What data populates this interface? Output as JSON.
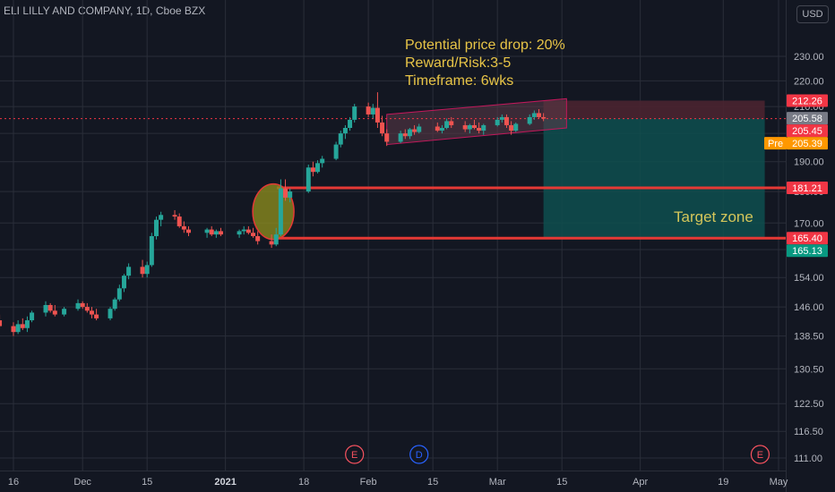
{
  "header": {
    "title": "ELI LILLY AND COMPANY, 1D, Cboe BZX",
    "currency": "USD"
  },
  "annotations": {
    "line1": "Potential price drop: 20%",
    "line2": "Reward/Risk:3-5",
    "line3": "Timeframe: 6wks",
    "target_label": "Target zone"
  },
  "event_markers": [
    {
      "label": "E",
      "date": "2021-01-29",
      "color": "#f7525f"
    },
    {
      "label": "D",
      "date": "2021-02-12",
      "color": "#2962ff"
    },
    {
      "label": "E",
      "date": "2021-04-27",
      "color": "#f7525f"
    }
  ],
  "price_tags": [
    {
      "value": 212.26,
      "text": "212.26",
      "bg": "#f23645"
    },
    {
      "value": 205.58,
      "text": "205.58",
      "bg": "#787b86"
    },
    {
      "value": 205.45,
      "text": "205.45",
      "bg": "#f23645"
    },
    {
      "value": 205.39,
      "text": "205.39",
      "bg": "#ff9800",
      "prefix": "Pre"
    },
    {
      "value": 181.21,
      "text": "181.21",
      "bg": "#f23645"
    },
    {
      "value": 165.4,
      "text": "165.40",
      "bg": "#f23645"
    },
    {
      "value": 165.13,
      "text": "165.13",
      "bg": "#089981"
    }
  ],
  "colors": {
    "up": "#26a69a",
    "down": "#ef5350",
    "support_line": "#e53935",
    "target_fill": "#0e4f4f",
    "stop_fill": "#4a2430",
    "ellipse_fill": "#8a8a1e",
    "ellipse_stroke": "#e53935",
    "channel_fill": "#5d3a48",
    "channel_stroke": "#c2185b"
  },
  "chart_data": {
    "type": "candlestick",
    "price_scale": "log",
    "y_ticks": [
      111.0,
      116.5,
      122.5,
      130.5,
      138.5,
      146.0,
      154.0,
      162.0,
      170.0,
      180.0,
      190.0,
      200.0,
      210.0,
      220.0,
      230.0
    ],
    "y_tick_labels": [
      "111.00",
      "116.50",
      "122.50",
      "130.50",
      "138.50",
      "146.00",
      "154.00",
      "162.0",
      "170.00",
      "180.00",
      "190.00",
      "200.00",
      "210.00",
      "220.00",
      "230.00"
    ],
    "x_ticks": [
      {
        "date": "2020-11-16",
        "label": "16",
        "bold": false
      },
      {
        "date": "2020-12-01",
        "label": "Dec",
        "bold": false
      },
      {
        "date": "2020-12-15",
        "label": "15",
        "bold": false
      },
      {
        "date": "2021-01-01",
        "label": "2021",
        "bold": true
      },
      {
        "date": "2021-01-18",
        "label": "18",
        "bold": false
      },
      {
        "date": "2021-02-01",
        "label": "Feb",
        "bold": false
      },
      {
        "date": "2021-02-15",
        "label": "15",
        "bold": false
      },
      {
        "date": "2021-03-01",
        "label": "Mar",
        "bold": false
      },
      {
        "date": "2021-03-15",
        "label": "15",
        "bold": false
      },
      {
        "date": "2021-04-01",
        "label": "Apr",
        "bold": false
      },
      {
        "date": "2021-04-19",
        "label": "19",
        "bold": false
      },
      {
        "date": "2021-05-01",
        "label": "May",
        "bold": false
      }
    ],
    "last_price": 205.45,
    "support_levels": [
      181.21,
      165.4
    ],
    "target_zone": {
      "from_date": "2021-03-11",
      "to_date": "2021-04-28",
      "top": 205.45,
      "bottom": 165.4
    },
    "stop_zone": {
      "from_date": "2021-03-11",
      "to_date": "2021-04-28",
      "top": 212.26,
      "bottom": 205.45
    },
    "channel": {
      "start_date": "2021-02-05",
      "end_date": "2021-03-16",
      "start_upper": 207.0,
      "start_lower": 196.0,
      "end_upper": 213.0,
      "end_lower": 202.0
    },
    "highlight_ellipse": {
      "date": "2021-01-11",
      "top": 182.5,
      "bottom": 165.0
    },
    "candles": [
      {
        "d": "2020-11-11",
        "o": 143.5,
        "h": 145.0,
        "l": 142.0,
        "c": 144.0
      },
      {
        "d": "2020-11-12",
        "o": 144.0,
        "h": 145.0,
        "l": 141.5,
        "c": 142.5
      },
      {
        "d": "2020-11-13",
        "o": 142.5,
        "h": 144.0,
        "l": 140.5,
        "c": 141.0
      },
      {
        "d": "2020-11-16",
        "o": 141.0,
        "h": 142.0,
        "l": 138.5,
        "c": 139.5
      },
      {
        "d": "2020-11-17",
        "o": 139.5,
        "h": 142.5,
        "l": 139.0,
        "c": 141.5
      },
      {
        "d": "2020-11-18",
        "o": 141.5,
        "h": 143.0,
        "l": 140.0,
        "c": 140.5
      },
      {
        "d": "2020-11-19",
        "o": 140.5,
        "h": 143.5,
        "l": 139.5,
        "c": 142.5
      },
      {
        "d": "2020-11-20",
        "o": 142.5,
        "h": 145.0,
        "l": 142.0,
        "c": 144.5
      },
      {
        "d": "2020-11-23",
        "o": 144.5,
        "h": 147.5,
        "l": 143.5,
        "c": 146.5
      },
      {
        "d": "2020-11-24",
        "o": 146.5,
        "h": 147.0,
        "l": 144.5,
        "c": 145.0
      },
      {
        "d": "2020-11-25",
        "o": 145.0,
        "h": 146.5,
        "l": 143.5,
        "c": 144.0
      },
      {
        "d": "2020-11-27",
        "o": 144.0,
        "h": 146.0,
        "l": 143.5,
        "c": 145.5
      },
      {
        "d": "2020-11-30",
        "o": 145.5,
        "h": 148.0,
        "l": 145.0,
        "c": 147.0
      },
      {
        "d": "2020-12-01",
        "o": 147.0,
        "h": 147.5,
        "l": 145.5,
        "c": 146.0
      },
      {
        "d": "2020-12-02",
        "o": 146.0,
        "h": 147.0,
        "l": 144.5,
        "c": 145.0
      },
      {
        "d": "2020-12-03",
        "o": 145.0,
        "h": 146.0,
        "l": 143.0,
        "c": 144.0
      },
      {
        "d": "2020-12-04",
        "o": 144.0,
        "h": 145.5,
        "l": 142.5,
        "c": 143.0
      },
      {
        "d": "2020-12-07",
        "o": 143.0,
        "h": 146.0,
        "l": 142.5,
        "c": 145.5
      },
      {
        "d": "2020-12-08",
        "o": 145.5,
        "h": 148.5,
        "l": 145.0,
        "c": 148.0
      },
      {
        "d": "2020-12-09",
        "o": 148.0,
        "h": 152.0,
        "l": 147.5,
        "c": 151.0
      },
      {
        "d": "2020-12-10",
        "o": 151.0,
        "h": 155.0,
        "l": 150.0,
        "c": 154.5
      },
      {
        "d": "2020-12-11",
        "o": 154.5,
        "h": 158.0,
        "l": 153.5,
        "c": 157.0
      },
      {
        "d": "2020-12-14",
        "o": 157.0,
        "h": 159.0,
        "l": 154.0,
        "c": 155.0
      },
      {
        "d": "2020-12-15",
        "o": 155.0,
        "h": 158.5,
        "l": 154.0,
        "c": 157.5
      },
      {
        "d": "2020-12-16",
        "o": 157.5,
        "h": 167.0,
        "l": 157.0,
        "c": 166.0
      },
      {
        "d": "2020-12-17",
        "o": 166.0,
        "h": 172.0,
        "l": 165.0,
        "c": 171.0
      },
      {
        "d": "2020-12-18",
        "o": 171.0,
        "h": 173.5,
        "l": 169.0,
        "c": 172.5
      },
      {
        "d": "2020-12-21",
        "o": 172.5,
        "h": 174.0,
        "l": 171.0,
        "c": 172.0
      },
      {
        "d": "2020-12-22",
        "o": 172.0,
        "h": 173.0,
        "l": 168.5,
        "c": 169.0
      },
      {
        "d": "2020-12-23",
        "o": 169.0,
        "h": 170.5,
        "l": 167.0,
        "c": 168.0
      },
      {
        "d": "2020-12-24",
        "o": 168.0,
        "h": 169.0,
        "l": 166.0,
        "c": 167.0
      },
      {
        "d": "2020-12-28",
        "o": 167.0,
        "h": 168.5,
        "l": 165.5,
        "c": 168.0
      },
      {
        "d": "2020-12-29",
        "o": 168.0,
        "h": 169.0,
        "l": 166.0,
        "c": 166.5
      },
      {
        "d": "2020-12-30",
        "o": 166.5,
        "h": 168.0,
        "l": 165.5,
        "c": 167.5
      },
      {
        "d": "2020-12-31",
        "o": 167.5,
        "h": 168.5,
        "l": 166.0,
        "c": 166.5
      },
      {
        "d": "2021-01-04",
        "o": 166.5,
        "h": 168.0,
        "l": 165.5,
        "c": 167.5
      },
      {
        "d": "2021-01-05",
        "o": 167.5,
        "h": 169.0,
        "l": 166.5,
        "c": 168.0
      },
      {
        "d": "2021-01-06",
        "o": 168.0,
        "h": 169.0,
        "l": 166.5,
        "c": 167.0
      },
      {
        "d": "2021-01-07",
        "o": 167.0,
        "h": 168.5,
        "l": 165.5,
        "c": 166.0
      },
      {
        "d": "2021-01-08",
        "o": 166.0,
        "h": 167.5,
        "l": 163.5,
        "c": 164.5
      },
      {
        "d": "2021-01-11",
        "o": 164.5,
        "h": 166.5,
        "l": 162.5,
        "c": 163.5
      },
      {
        "d": "2021-01-12",
        "o": 163.5,
        "h": 168.5,
        "l": 163.0,
        "c": 166.5
      },
      {
        "d": "2021-01-13",
        "o": 166.5,
        "h": 184.0,
        "l": 166.0,
        "c": 181.0
      },
      {
        "d": "2021-01-14",
        "o": 181.0,
        "h": 184.0,
        "l": 177.0,
        "c": 178.0
      },
      {
        "d": "2021-01-15",
        "o": 178.0,
        "h": 181.0,
        "l": 176.5,
        "c": 180.0
      },
      {
        "d": "2021-01-19",
        "o": 180.0,
        "h": 189.0,
        "l": 179.5,
        "c": 188.0
      },
      {
        "d": "2021-01-20",
        "o": 188.0,
        "h": 190.0,
        "l": 185.0,
        "c": 186.5
      },
      {
        "d": "2021-01-21",
        "o": 186.5,
        "h": 190.5,
        "l": 186.0,
        "c": 189.5
      },
      {
        "d": "2021-01-22",
        "o": 189.5,
        "h": 192.0,
        "l": 188.0,
        "c": 191.0
      },
      {
        "d": "2021-01-25",
        "o": 191.0,
        "h": 197.0,
        "l": 190.5,
        "c": 196.0
      },
      {
        "d": "2021-01-26",
        "o": 196.0,
        "h": 201.0,
        "l": 195.0,
        "c": 200.0
      },
      {
        "d": "2021-01-27",
        "o": 200.0,
        "h": 203.0,
        "l": 198.0,
        "c": 202.0
      },
      {
        "d": "2021-01-28",
        "o": 202.0,
        "h": 206.0,
        "l": 201.0,
        "c": 205.0
      },
      {
        "d": "2021-01-29",
        "o": 205.0,
        "h": 211.0,
        "l": 204.0,
        "c": 210.0
      },
      {
        "d": "2021-02-01",
        "o": 210.0,
        "h": 211.5,
        "l": 206.0,
        "c": 207.0
      },
      {
        "d": "2021-02-02",
        "o": 207.0,
        "h": 211.0,
        "l": 205.5,
        "c": 209.5
      },
      {
        "d": "2021-02-03",
        "o": 209.5,
        "h": 215.5,
        "l": 202.0,
        "c": 204.0
      },
      {
        "d": "2021-02-04",
        "o": 204.0,
        "h": 206.5,
        "l": 199.0,
        "c": 200.0
      },
      {
        "d": "2021-02-05",
        "o": 200.0,
        "h": 201.5,
        "l": 195.5,
        "c": 197.0
      },
      {
        "d": "2021-02-08",
        "o": 197.0,
        "h": 201.0,
        "l": 196.5,
        "c": 200.0
      },
      {
        "d": "2021-02-09",
        "o": 200.0,
        "h": 201.5,
        "l": 198.0,
        "c": 199.0
      },
      {
        "d": "2021-02-10",
        "o": 199.0,
        "h": 202.0,
        "l": 198.0,
        "c": 201.5
      },
      {
        "d": "2021-02-11",
        "o": 201.5,
        "h": 203.0,
        "l": 199.5,
        "c": 200.5
      },
      {
        "d": "2021-02-12",
        "o": 200.5,
        "h": 203.5,
        "l": 200.0,
        "c": 202.5
      },
      {
        "d": "2021-02-16",
        "o": 202.5,
        "h": 204.0,
        "l": 200.5,
        "c": 201.0
      },
      {
        "d": "2021-02-17",
        "o": 201.0,
        "h": 203.0,
        "l": 200.0,
        "c": 202.0
      },
      {
        "d": "2021-02-18",
        "o": 202.0,
        "h": 205.5,
        "l": 201.5,
        "c": 204.5
      },
      {
        "d": "2021-02-19",
        "o": 204.5,
        "h": 206.0,
        "l": 202.0,
        "c": 203.0
      },
      {
        "d": "2021-02-22",
        "o": 203.0,
        "h": 204.5,
        "l": 200.5,
        "c": 201.5
      },
      {
        "d": "2021-02-23",
        "o": 201.5,
        "h": 203.5,
        "l": 200.0,
        "c": 203.0
      },
      {
        "d": "2021-02-24",
        "o": 203.0,
        "h": 205.0,
        "l": 201.5,
        "c": 202.0
      },
      {
        "d": "2021-02-25",
        "o": 202.0,
        "h": 204.0,
        "l": 200.0,
        "c": 201.0
      },
      {
        "d": "2021-02-26",
        "o": 201.0,
        "h": 203.5,
        "l": 199.5,
        "c": 203.0
      },
      {
        "d": "2021-03-01",
        "o": 203.0,
        "h": 206.0,
        "l": 202.5,
        "c": 205.0
      },
      {
        "d": "2021-03-02",
        "o": 205.0,
        "h": 207.0,
        "l": 204.0,
        "c": 206.0
      },
      {
        "d": "2021-03-03",
        "o": 206.0,
        "h": 207.0,
        "l": 202.0,
        "c": 203.0
      },
      {
        "d": "2021-03-04",
        "o": 203.0,
        "h": 204.5,
        "l": 199.5,
        "c": 201.0
      },
      {
        "d": "2021-03-05",
        "o": 201.0,
        "h": 204.0,
        "l": 200.5,
        "c": 203.5
      },
      {
        "d": "2021-03-08",
        "o": 203.5,
        "h": 207.0,
        "l": 203.0,
        "c": 206.0
      },
      {
        "d": "2021-03-09",
        "o": 206.0,
        "h": 208.5,
        "l": 205.0,
        "c": 207.5
      },
      {
        "d": "2021-03-10",
        "o": 207.5,
        "h": 209.0,
        "l": 205.5,
        "c": 206.0
      },
      {
        "d": "2021-03-11",
        "o": 206.0,
        "h": 207.5,
        "l": 204.5,
        "c": 205.45
      }
    ]
  }
}
